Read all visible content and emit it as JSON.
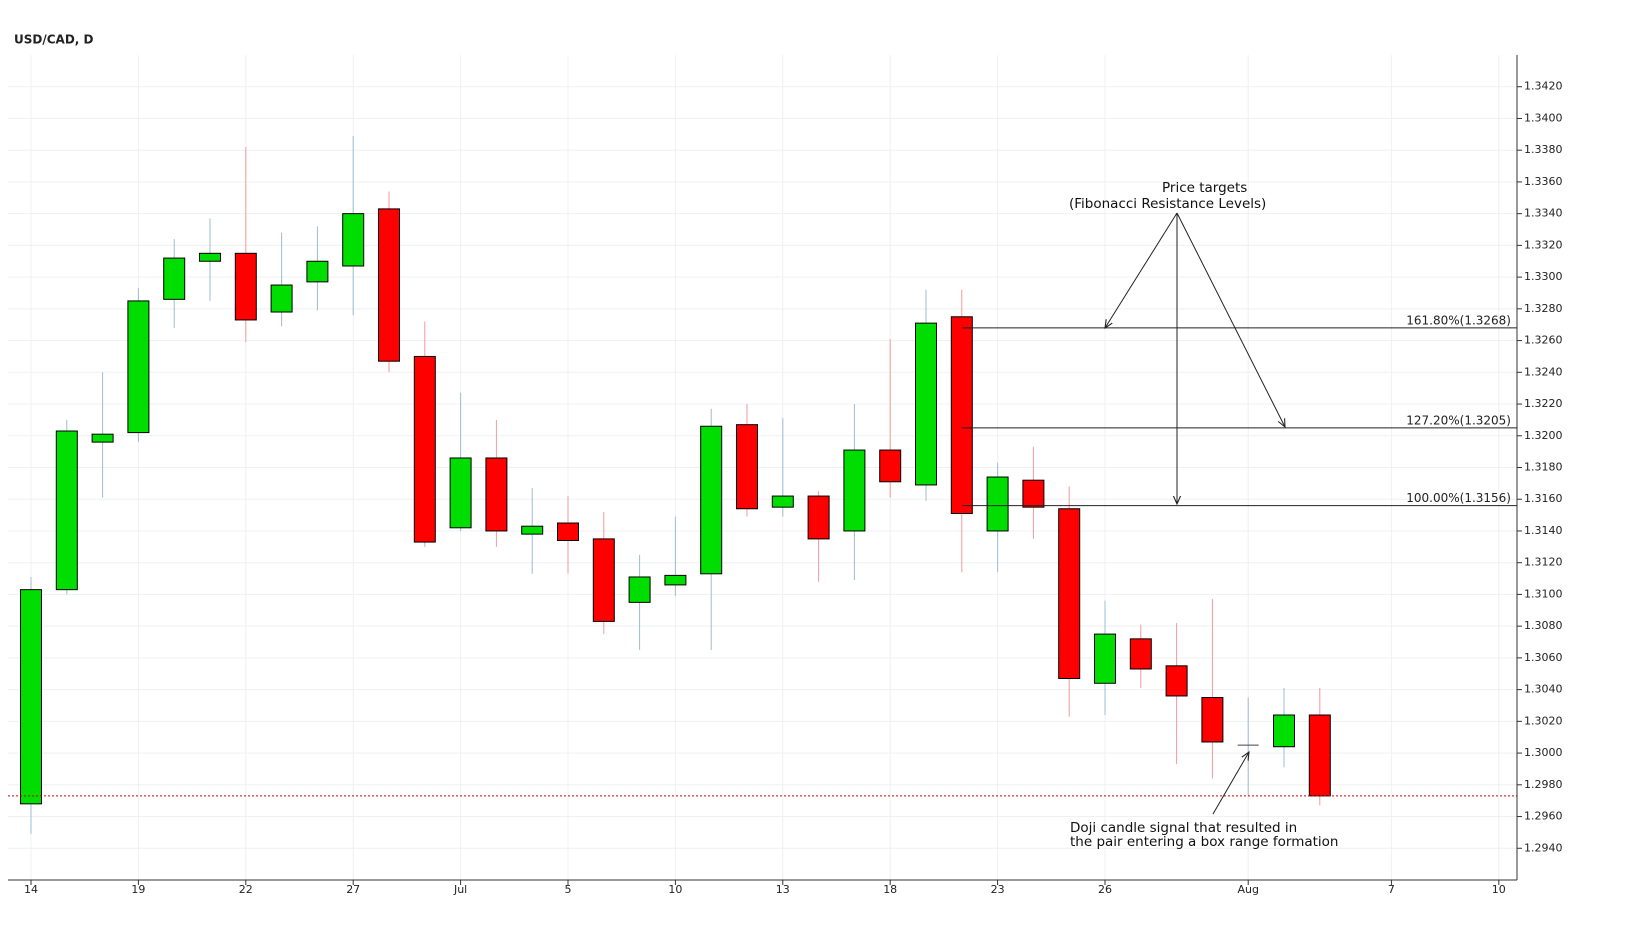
{
  "chart_data": {
    "type": "candlestick",
    "title": "USD/CAD, D",
    "categories": [
      "14",
      null,
      null,
      "19",
      null,
      null,
      "22",
      null,
      null,
      "27",
      null,
      null,
      "Jul",
      null,
      null,
      "5",
      null,
      null,
      "10",
      null,
      null,
      "13",
      null,
      null,
      "18",
      null,
      null,
      "23",
      null,
      null,
      "26",
      null,
      null,
      null,
      "Aug",
      null,
      null,
      null,
      "7",
      null,
      null,
      "10"
    ],
    "open": [
      1.2968,
      1.3103,
      1.3196,
      1.3202,
      1.3286,
      1.331,
      1.3315,
      1.3278,
      1.3297,
      1.3307,
      1.3343,
      1.325,
      1.3142,
      1.3186,
      1.3138,
      1.3145,
      1.3135,
      1.3095,
      1.3106,
      1.3113,
      1.3207,
      1.3155,
      1.3162,
      1.314,
      1.3191,
      1.3169,
      1.3275,
      1.314,
      1.3172,
      1.3154,
      1.3044,
      1.3072,
      1.3055,
      1.3035,
      1.3005,
      1.3004,
      1.3024,
      null,
      null,
      null,
      null,
      null
    ],
    "high": [
      1.3111,
      1.321,
      1.324,
      1.3293,
      1.3324,
      1.3337,
      1.3382,
      1.3328,
      1.3332,
      1.3389,
      1.3354,
      1.3272,
      1.3227,
      1.321,
      1.3167,
      1.3162,
      1.3152,
      1.3125,
      1.3149,
      1.3217,
      1.322,
      1.3211,
      1.3165,
      1.322,
      1.3261,
      1.3292,
      1.3292,
      1.3183,
      1.3193,
      1.3168,
      1.3096,
      1.3081,
      1.3082,
      1.3097,
      1.3035,
      1.3041,
      1.3041,
      null,
      null,
      null,
      null,
      null
    ],
    "low": [
      1.2949,
      1.31,
      1.3161,
      1.3196,
      1.3268,
      1.3285,
      1.3259,
      1.3269,
      1.3279,
      1.3276,
      1.324,
      1.313,
      1.314,
      1.313,
      1.3113,
      1.3113,
      1.3075,
      1.3065,
      1.3099,
      1.3065,
      1.3149,
      1.3149,
      1.3108,
      1.3109,
      1.3161,
      1.3159,
      1.3114,
      1.3114,
      1.3135,
      1.3023,
      1.3024,
      1.3041,
      1.2993,
      1.2984,
      1.2973,
      1.2991,
      1.2967,
      null,
      null,
      null,
      null,
      null
    ],
    "close": [
      1.3103,
      1.3203,
      1.3201,
      1.3285,
      1.3312,
      1.3315,
      1.3273,
      1.3295,
      1.331,
      1.334,
      1.3247,
      1.3133,
      1.3186,
      1.314,
      1.3143,
      1.3134,
      1.3083,
      1.3111,
      1.3112,
      1.3206,
      1.3154,
      1.3162,
      1.3135,
      1.3191,
      1.3171,
      1.3271,
      1.3151,
      1.3174,
      1.3155,
      1.3047,
      1.3075,
      1.3053,
      1.3036,
      1.3007,
      1.3005,
      1.3024,
      1.2973,
      null,
      null,
      null,
      null,
      null
    ],
    "up_color": "#00dd00",
    "down_color": "#ff0000",
    "up_wick_color": "#9dbcd4",
    "down_wick_color": "#f29a9a",
    "price_line": 1.2973,
    "price_line_color": "#cc0000",
    "ylim": [
      1.292,
      1.344
    ],
    "yticks": [
      {
        "value": 1.294,
        "label": "1.2940"
      },
      {
        "value": 1.296,
        "label": "1.2960"
      },
      {
        "value": 1.298,
        "label": "1.2980"
      },
      {
        "value": 1.3,
        "label": "1.3000"
      },
      {
        "value": 1.302,
        "label": "1.3020"
      },
      {
        "value": 1.304,
        "label": "1.3040"
      },
      {
        "value": 1.306,
        "label": "1.3060"
      },
      {
        "value": 1.308,
        "label": "1.3080"
      },
      {
        "value": 1.31,
        "label": "1.3100"
      },
      {
        "value": 1.312,
        "label": "1.3120"
      },
      {
        "value": 1.314,
        "label": "1.3140"
      },
      {
        "value": 1.316,
        "label": "1.3160"
      },
      {
        "value": 1.318,
        "label": "1.3180"
      },
      {
        "value": 1.32,
        "label": "1.3200"
      },
      {
        "value": 1.322,
        "label": "1.3220"
      },
      {
        "value": 1.324,
        "label": "1.3240"
      },
      {
        "value": 1.326,
        "label": "1.3260"
      },
      {
        "value": 1.328,
        "label": "1.3280"
      },
      {
        "value": 1.33,
        "label": "1.3300"
      },
      {
        "value": 1.332,
        "label": "1.3320"
      },
      {
        "value": 1.334,
        "label": "1.3340"
      },
      {
        "value": 1.336,
        "label": "1.3360"
      },
      {
        "value": 1.338,
        "label": "1.3380"
      },
      {
        "value": 1.34,
        "label": "1.3400"
      },
      {
        "value": 1.342,
        "label": "1.3420"
      }
    ],
    "grid": true,
    "levels": [
      {
        "label": "161.80%(1.3268)",
        "value": 1.3268
      },
      {
        "label": "127.20%(1.3205)",
        "value": 1.3205
      },
      {
        "label": "100.00%(1.3156)",
        "value": 1.3156
      }
    ],
    "annotations": [
      [
        "Price targets",
        "(Fibonacci Resistance Levels)"
      ],
      [
        "Doji candle signal that resulted in",
        "the pair entering a box range formation"
      ]
    ]
  }
}
